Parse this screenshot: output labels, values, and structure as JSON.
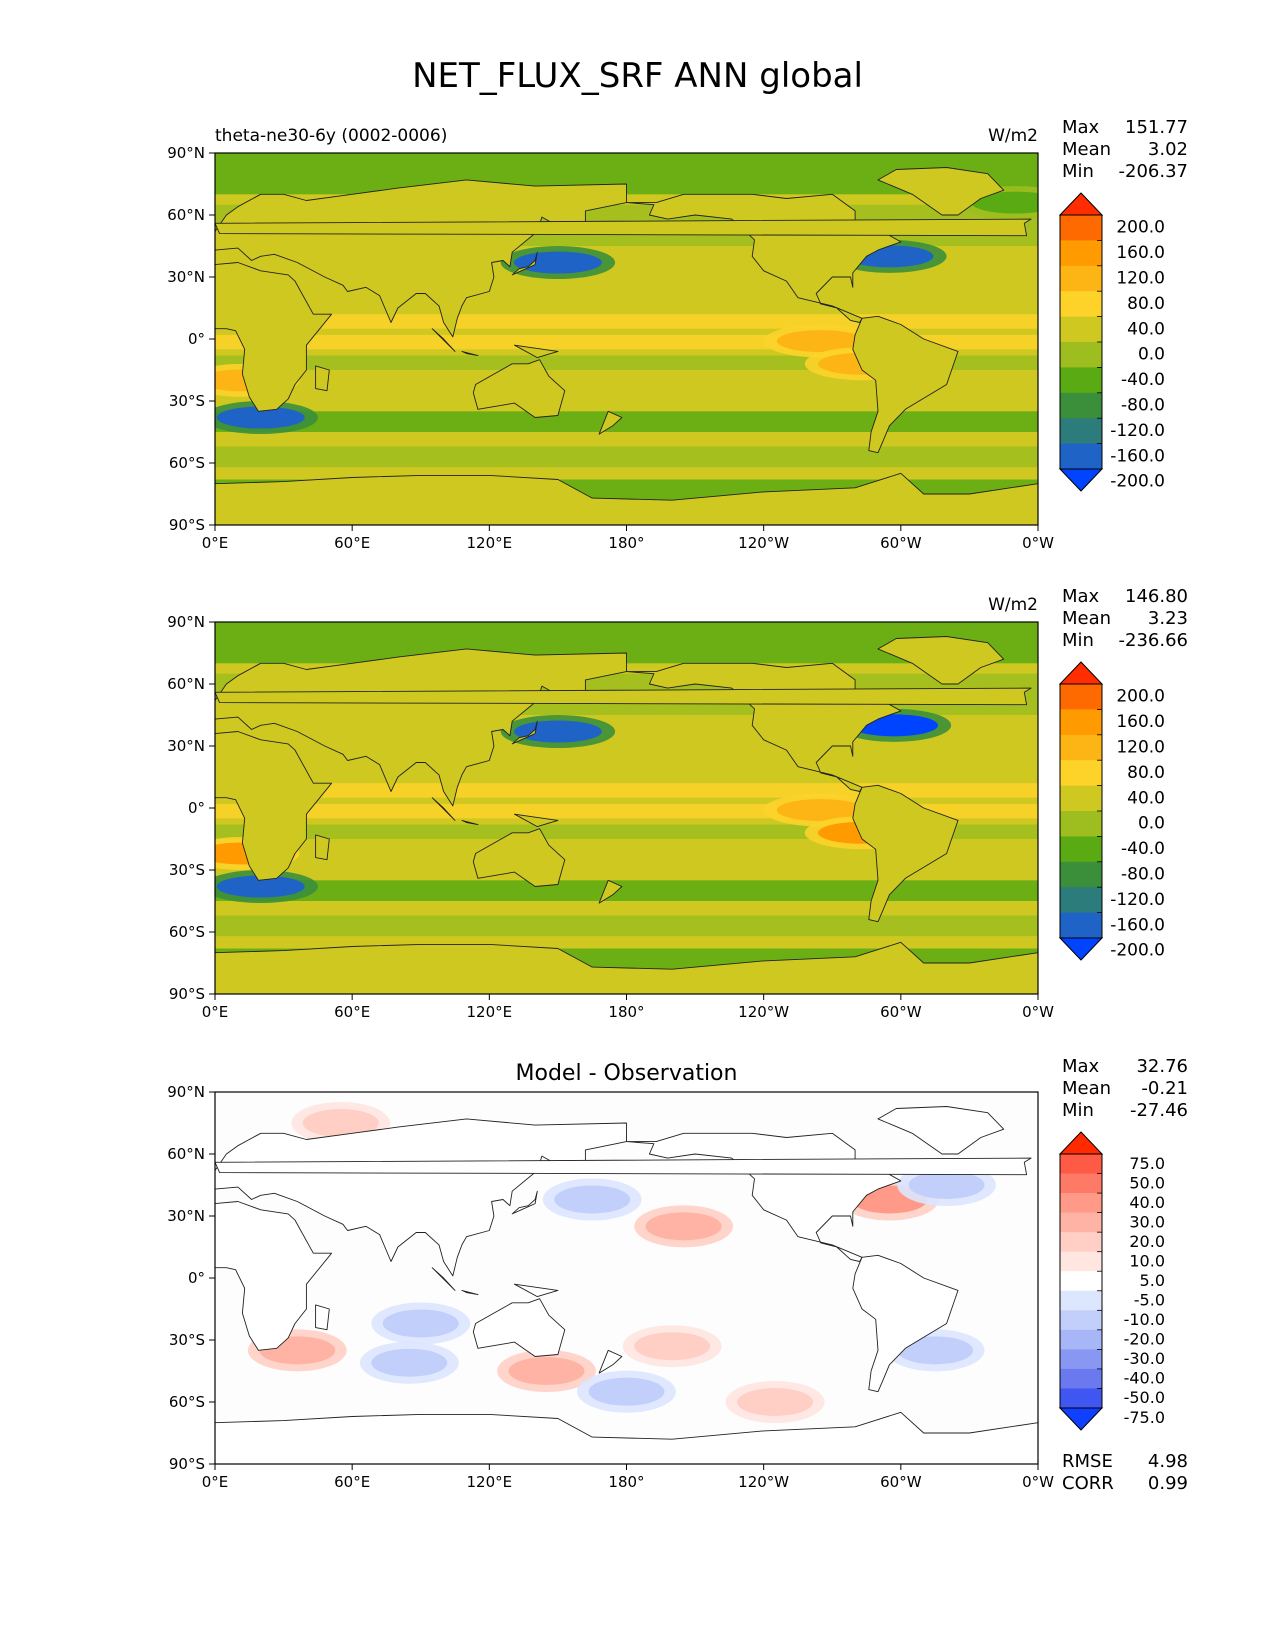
{
  "figure": {
    "title": "NET_FLUX_SRF ANN global"
  },
  "chart_data": [
    {
      "type": "heatmap",
      "map": "global-contour",
      "title": "",
      "left_title": "theta-ne30-6y (0002-0006)",
      "units": "W/m2",
      "stats": {
        "Max": "151.77",
        "Mean": "3.02",
        "Min": "-206.37"
      },
      "xticks": [
        "0°E",
        "60°E",
        "120°E",
        "180°",
        "120°W",
        "60°W",
        "0°W"
      ],
      "yticks": [
        "90°N",
        "60°N",
        "30°N",
        "0°",
        "30°S",
        "60°S",
        "90°S"
      ],
      "xlim": [
        0,
        360
      ],
      "ylim": [
        -90,
        90
      ],
      "colorbar": {
        "extend": "both",
        "levels": [
          "200.0",
          "160.0",
          "120.0",
          "80.0",
          "40.0",
          "0.0",
          "-40.0",
          "-80.0",
          "-120.0",
          "-160.0",
          "-200.0"
        ],
        "colors": [
          "#ff2d00",
          "#ff6a00",
          "#ff9a00",
          "#fdb515",
          "#fdd32a",
          "#cfc820",
          "#9dbe1e",
          "#5aaa14",
          "#3b8f3a",
          "#2d7c7c",
          "#1f63c6",
          "#0044ff"
        ]
      },
      "features": [
        {
          "lat": 37,
          "lon": 150,
          "value": -190
        },
        {
          "lat": 40,
          "lon": 295,
          "value": -190
        },
        {
          "lat": -38,
          "lon": 20,
          "value": -180
        },
        {
          "lat": -1,
          "lon": 265,
          "value": 85
        },
        {
          "lat": -20,
          "lon": 12,
          "value": 110
        },
        {
          "lat": -12,
          "lon": 283,
          "value": 110
        },
        {
          "lat": 66,
          "lon": 350,
          "value": -60
        }
      ]
    },
    {
      "type": "heatmap",
      "map": "global-contour",
      "title": "",
      "left_title": "",
      "units": "W/m2",
      "stats": {
        "Max": "146.80",
        "Mean": "3.23",
        "Min": "-236.66"
      },
      "xticks": [
        "0°E",
        "60°E",
        "120°E",
        "180°",
        "120°W",
        "60°W",
        "0°W"
      ],
      "yticks": [
        "90°N",
        "60°N",
        "30°N",
        "0°",
        "30°S",
        "60°S",
        "90°S"
      ],
      "xlim": [
        0,
        360
      ],
      "ylim": [
        -90,
        90
      ],
      "colorbar": {
        "extend": "both",
        "levels": [
          "200.0",
          "160.0",
          "120.0",
          "80.0",
          "40.0",
          "0.0",
          "-40.0",
          "-80.0",
          "-120.0",
          "-160.0",
          "-200.0"
        ],
        "colors": [
          "#ff2d00",
          "#ff6a00",
          "#ff9a00",
          "#fdb515",
          "#fdd32a",
          "#cfc820",
          "#9dbe1e",
          "#5aaa14",
          "#3b8f3a",
          "#2d7c7c",
          "#1f63c6",
          "#0044ff"
        ]
      },
      "features": [
        {
          "lat": 37,
          "lon": 150,
          "value": -200
        },
        {
          "lat": 40,
          "lon": 297,
          "value": -230
        },
        {
          "lat": -38,
          "lon": 20,
          "value": -190
        },
        {
          "lat": -1,
          "lon": 265,
          "value": 100
        },
        {
          "lat": -22,
          "lon": 12,
          "value": 120
        },
        {
          "lat": -12,
          "lon": 283,
          "value": 120
        }
      ]
    },
    {
      "type": "heatmap",
      "map": "global-contour",
      "title": "Model - Observation",
      "left_title": "",
      "units": "",
      "stats": {
        "Max": "32.76",
        "Mean": "-0.21",
        "Min": "-27.46"
      },
      "extra_stats": {
        "RMSE": "4.98",
        "CORR": "0.99"
      },
      "xticks": [
        "0°E",
        "60°E",
        "120°E",
        "180°",
        "120°W",
        "60°W",
        "0°W"
      ],
      "yticks": [
        "90°N",
        "60°N",
        "30°N",
        "0°",
        "30°S",
        "60°S",
        "90°S"
      ],
      "xlim": [
        0,
        360
      ],
      "ylim": [
        -90,
        90
      ],
      "colorbar": {
        "extend": "both",
        "levels": [
          "75.0",
          "50.0",
          "40.0",
          "30.0",
          "20.0",
          "10.0",
          "5.0",
          "-5.0",
          "-10.0",
          "-20.0",
          "-30.0",
          "-40.0",
          "-50.0",
          "-75.0"
        ],
        "colors": [
          "#ff2a00",
          "#ff5a46",
          "#ff7a66",
          "#ff9a88",
          "#ffb3a5",
          "#ffcfc5",
          "#ffe6e0",
          "#ffffff",
          "#dde6ff",
          "#c3cffb",
          "#a6b6f7",
          "#8797f2",
          "#6a79ee",
          "#4056f0",
          "#1040ff"
        ]
      },
      "features": [
        {
          "lat": 38,
          "lon": 295,
          "value": 30
        },
        {
          "lat": 45,
          "lon": 320,
          "value": -20
        },
        {
          "lat": 25,
          "lon": 205,
          "value": 20
        },
        {
          "lat": 38,
          "lon": 165,
          "value": -15
        },
        {
          "lat": -35,
          "lon": 36,
          "value": 20
        },
        {
          "lat": -41,
          "lon": 85,
          "value": -20
        },
        {
          "lat": -45,
          "lon": 145,
          "value": 20
        },
        {
          "lat": -55,
          "lon": 180,
          "value": -20
        },
        {
          "lat": -33,
          "lon": 200,
          "value": 15
        },
        {
          "lat": -60,
          "lon": 245,
          "value": 15
        },
        {
          "lat": -35,
          "lon": 315,
          "value": -20
        },
        {
          "lat": 75,
          "lon": 55,
          "value": 10
        },
        {
          "lat": -22,
          "lon": 90,
          "value": -12
        }
      ]
    }
  ]
}
